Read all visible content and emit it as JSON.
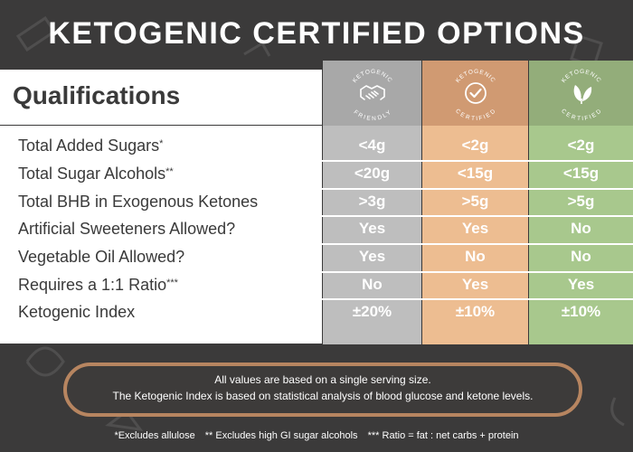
{
  "title": "KETOGENIC CERTIFIED OPTIONS",
  "qualifications_heading": "Qualifications",
  "columns": [
    {
      "badge_top": "KETOGENIC",
      "badge_bottom": "FRIENDLY",
      "icon": "handshake-icon",
      "color": "#bebebe"
    },
    {
      "badge_top": "KETOGENIC",
      "badge_bottom": "CERTIFIED",
      "icon": "checkmark-icon",
      "color": "#edbd91"
    },
    {
      "badge_top": "KETOGENIC",
      "badge_bottom": "CERTIFIED",
      "icon": "leaf-icon",
      "color": "#a8c88d"
    }
  ],
  "rows": [
    {
      "label": "Total Added Sugars",
      "mark": "*",
      "values": [
        "<4g",
        "<2g",
        "<2g"
      ]
    },
    {
      "label": "Total Sugar Alcohols",
      "mark": "**",
      "values": [
        "<20g",
        "<15g",
        "<15g"
      ]
    },
    {
      "label": "Total BHB in Exogenous Ketones",
      "mark": "",
      "values": [
        ">3g",
        ">5g",
        ">5g"
      ]
    },
    {
      "label": "Artificial Sweeteners Allowed?",
      "mark": "",
      "values": [
        "Yes",
        "Yes",
        "No"
      ]
    },
    {
      "label": "Vegetable Oil Allowed?",
      "mark": "",
      "values": [
        "Yes",
        "No",
        "No"
      ]
    },
    {
      "label": "Requires a 1:1 Ratio",
      "mark": "***",
      "values": [
        "No",
        "Yes",
        "Yes"
      ]
    },
    {
      "label": "Ketogenic Index",
      "mark": "",
      "values": [
        "±20%",
        "±10%",
        "±10%"
      ]
    }
  ],
  "note": {
    "line1": "All values are based on a single serving size.",
    "line2": "The Ketogenic Index is based on statistical analysis of blood glucose and ketone levels."
  },
  "footnotes": [
    "*Excludes allulose",
    "** Excludes high GI sugar alcohols",
    "*** Ratio = fat : net carbs + protein"
  ]
}
